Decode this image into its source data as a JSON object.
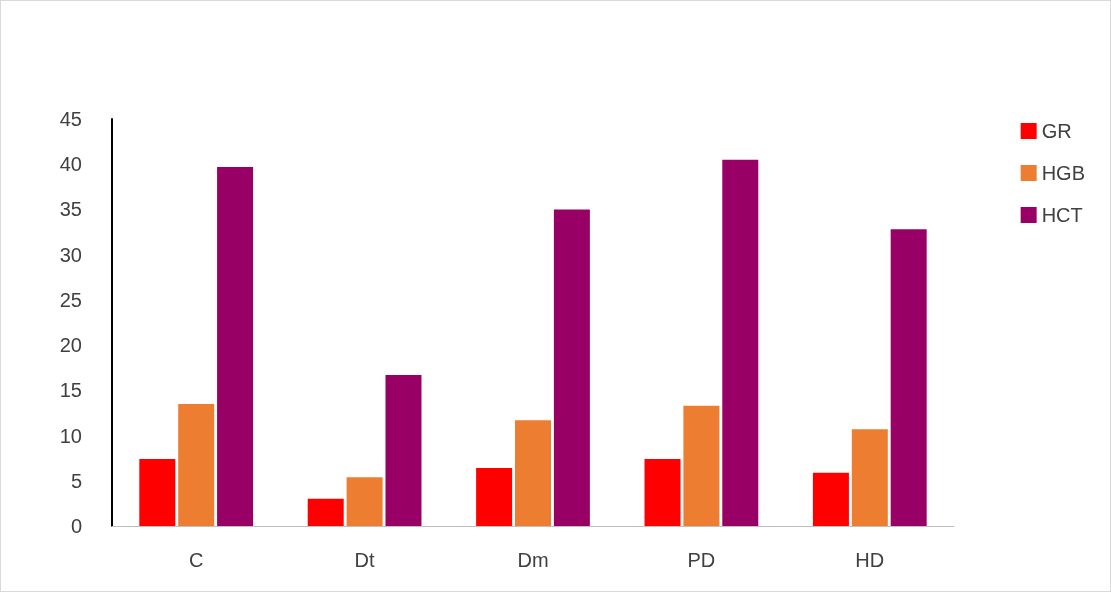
{
  "chart_data": {
    "type": "bar",
    "categories": [
      "C",
      "Dt",
      "Dm",
      "PD",
      "HD"
    ],
    "series": [
      {
        "name": "GR",
        "color": "#ff0000",
        "values": [
          7.4,
          3.0,
          6.4,
          7.4,
          5.9
        ]
      },
      {
        "name": "HGB",
        "color": "#ed7d31",
        "values": [
          13.5,
          5.4,
          11.7,
          13.3,
          10.7
        ]
      },
      {
        "name": "HCT",
        "color": "#990066",
        "values": [
          39.7,
          16.7,
          35.0,
          40.5,
          32.8
        ]
      }
    ],
    "ylim": [
      0,
      45
    ],
    "yticks": [
      0,
      5,
      10,
      15,
      20,
      25,
      30,
      35,
      40,
      45
    ],
    "grid": false,
    "legend": "right"
  }
}
